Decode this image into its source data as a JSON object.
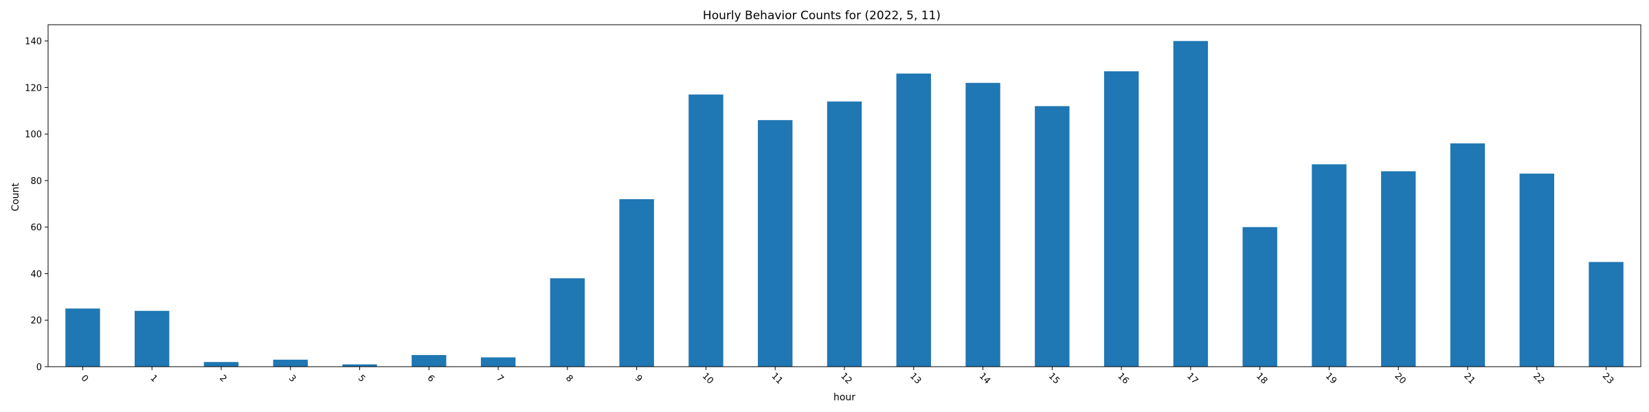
{
  "chart_data": {
    "type": "bar",
    "title": "Hourly Behavior Counts for (2022, 5, 11)",
    "xlabel": "hour",
    "ylabel": "Count",
    "categories": [
      "0",
      "1",
      "2",
      "3",
      "5",
      "6",
      "7",
      "8",
      "9",
      "10",
      "11",
      "12",
      "13",
      "14",
      "15",
      "16",
      "17",
      "18",
      "19",
      "20",
      "21",
      "22",
      "23"
    ],
    "values": [
      25,
      24,
      2,
      3,
      1,
      5,
      4,
      38,
      72,
      117,
      106,
      114,
      126,
      122,
      112,
      127,
      140,
      60,
      87,
      84,
      96,
      83,
      45
    ],
    "ylim": [
      0,
      147
    ],
    "yticks": [
      0,
      20,
      40,
      60,
      80,
      100,
      120,
      140
    ],
    "grid": false,
    "legend": "none",
    "bar_color": "#1f77b4",
    "xtick_rotation": 45
  }
}
